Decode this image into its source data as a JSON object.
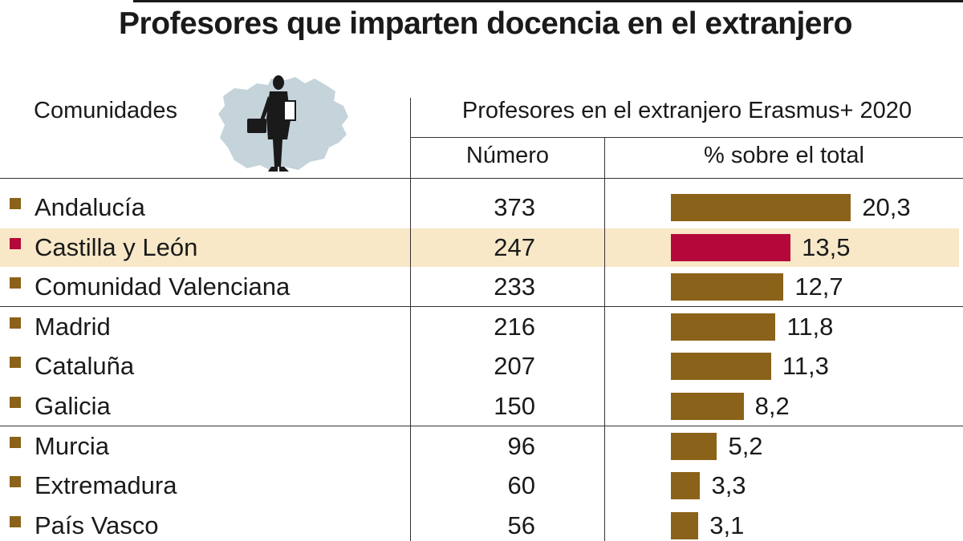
{
  "title": "Profesores que imparten docencia en el extranjero",
  "header": {
    "comunidades": "Comunidades",
    "group": "Profesores en el extranjero Erasmus+ 2020",
    "col_numero": "Número",
    "col_pct": "% sobre el total"
  },
  "colors": {
    "bar": "#8b6219",
    "highlight_bar": "#b5083a",
    "highlight_row": "#f8e8c8",
    "map": "#c5d3db",
    "figure": "#1a1a1a"
  },
  "icons": [
    "castilla-y-leon-map-icon",
    "teacher-figure-icon"
  ],
  "chart_data": {
    "type": "table",
    "columns": [
      "Comunidades",
      "Número",
      "% sobre el total"
    ],
    "highlight": "Castilla y León",
    "rows": [
      {
        "region": "Andalucía",
        "number": "373",
        "percent": "20,3",
        "value": 20.3
      },
      {
        "region": "Castilla y León",
        "number": "247",
        "percent": "13,5",
        "value": 13.5
      },
      {
        "region": "Comunidad Valenciana",
        "number": "233",
        "percent": "12,7",
        "value": 12.7
      },
      {
        "region": "Madrid",
        "number": "216",
        "percent": "11,8",
        "value": 11.8
      },
      {
        "region": "Cataluña",
        "number": "207",
        "percent": "11,3",
        "value": 11.3
      },
      {
        "region": "Galicia",
        "number": "150",
        "percent": "8,2",
        "value": 8.2
      },
      {
        "region": "Murcia",
        "number": "96",
        "percent": "5,2",
        "value": 5.2
      },
      {
        "region": "Extremadura",
        "number": "60",
        "percent": "3,3",
        "value": 3.3
      },
      {
        "region": "País Vasco",
        "number": "56",
        "percent": "3,1",
        "value": 3.1
      }
    ]
  }
}
